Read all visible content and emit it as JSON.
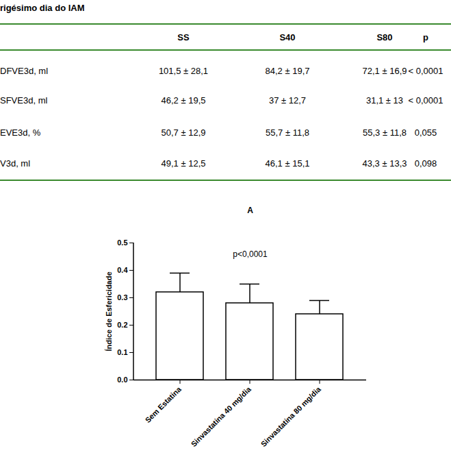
{
  "header": {
    "title": "rigésimo dia do IAM"
  },
  "table": {
    "columns": [
      "",
      "SS",
      "S40",
      "S80",
      "p"
    ],
    "rows": [
      [
        "DFVE3d, ml",
        "101,5 ± 28,1",
        "84,2 ± 19,7",
        "72,1 ± 16,9",
        "< 0,0001"
      ],
      [
        "SFVE3d, ml",
        "46,2 ± 19,5",
        "37 ± 12,7",
        "31,1 ± 13",
        "< 0,0001"
      ],
      [
        "EVE3d, %",
        "50,7 ± 12,9",
        "55,7 ± 11,8",
        "55,3 ± 11,8",
        "0,055"
      ],
      [
        "V3d, ml",
        "49,1 ± 12,5",
        "46,1 ± 15,1",
        "43,3 ± 13,3",
        "0,098"
      ]
    ]
  },
  "chart_data": {
    "type": "bar",
    "title": "A",
    "annotations": [
      "p<0,0001"
    ],
    "y_label": "Índice de Esfericidade",
    "categories": [
      "Sem Estatina",
      "Sinvastatina 40 mg/dia",
      "Sinvastatina 80 mg/dia"
    ],
    "values": [
      0.32,
      0.28,
      0.24
    ],
    "error": [
      0.07,
      0.07,
      0.05
    ],
    "color": "#ffffff",
    "ylim": [
      0,
      0.5
    ],
    "yticks": [
      {
        "value": 0,
        "label": "0.0"
      },
      0.1,
      0.2,
      0.3,
      0.4,
      0.5
    ],
    "grid": false
  }
}
